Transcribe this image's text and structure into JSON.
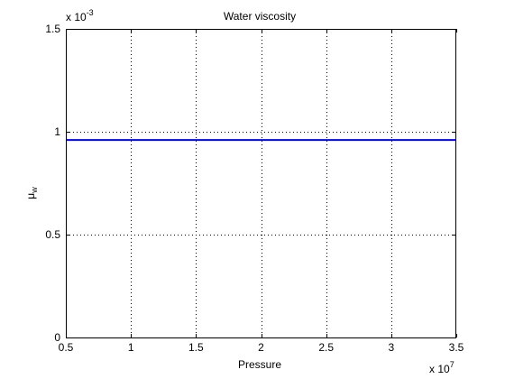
{
  "chart_data": {
    "type": "line",
    "title": "Water viscosity",
    "xlabel": "Pressure",
    "ylabel_base": "μ",
    "ylabel_sub": "w",
    "x_multiplier_base": "x 10",
    "x_multiplier_exp": "7",
    "y_multiplier_base": "x 10",
    "y_multiplier_exp": "-3",
    "xlim": [
      0.5,
      3.5
    ],
    "ylim": [
      0,
      1.5
    ],
    "x_ticks": [
      0.5,
      1,
      1.5,
      2,
      2.5,
      3,
      3.5
    ],
    "x_tick_labels": [
      "0.5",
      "1",
      "1.5",
      "2",
      "2.5",
      "3",
      "3.5"
    ],
    "y_ticks": [
      0,
      0.5,
      1,
      1.5
    ],
    "y_tick_labels": [
      "0",
      "0.5",
      "1",
      "1.5"
    ],
    "grid": true,
    "series": [
      {
        "color": "#0000ff",
        "x": [
          0.5,
          3.5
        ],
        "y": [
          0.96,
          0.96
        ]
      }
    ]
  }
}
